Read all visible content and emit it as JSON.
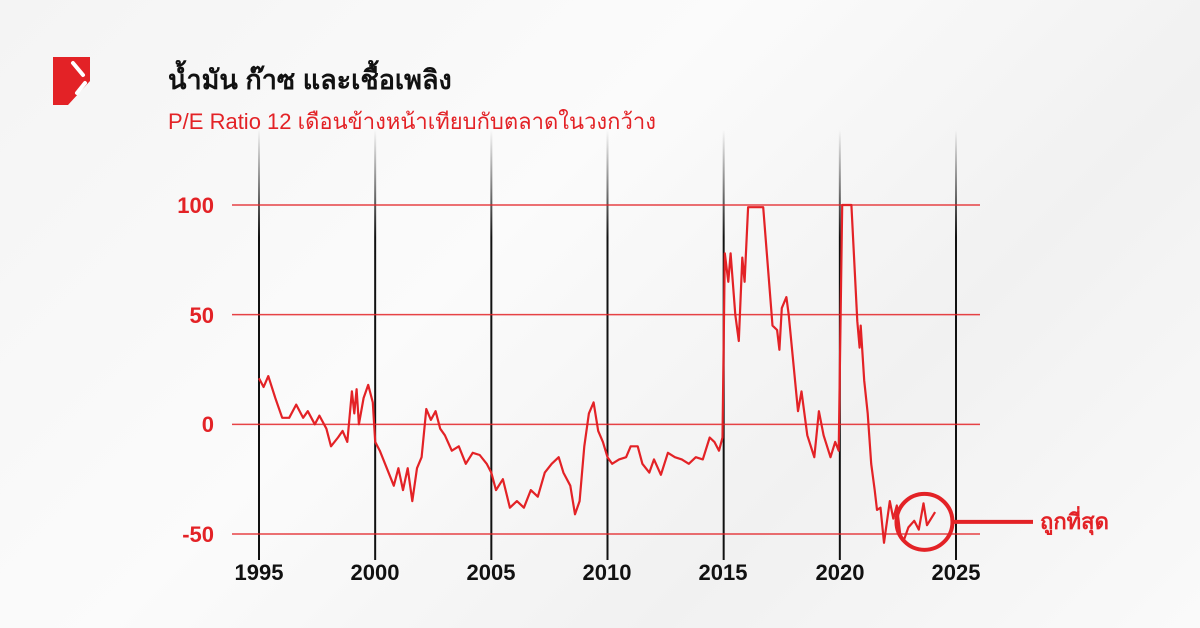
{
  "header": {
    "title": "น้ำมัน ก๊าซ และเชื้อเพลิง",
    "subtitle": "P/E Ratio 12 เดือนข้างหน้าเทียบกับตลาดในวงกว้าง"
  },
  "colors": {
    "accent": "#e32226",
    "gridline_vertical": "#111111",
    "text": "#111111"
  },
  "chart_data": {
    "type": "line",
    "title": "",
    "xlabel": "",
    "ylabel": "",
    "xlim": [
      1995,
      2025
    ],
    "ylim": [
      -50,
      100
    ],
    "x_ticks": [
      "1995",
      "2000",
      "2005",
      "2010",
      "2015",
      "2020",
      "2025"
    ],
    "y_ticks": [
      "100",
      "50",
      "0",
      "-50"
    ],
    "grid": true,
    "series": [
      {
        "points": [
          [
            1995.0,
            21
          ],
          [
            1995.2,
            17
          ],
          [
            1995.4,
            22
          ],
          [
            1995.7,
            12
          ],
          [
            1996.0,
            3
          ],
          [
            1996.3,
            3
          ],
          [
            1996.6,
            9
          ],
          [
            1996.9,
            3
          ],
          [
            1997.1,
            6
          ],
          [
            1997.4,
            0
          ],
          [
            1997.6,
            4
          ],
          [
            1997.9,
            -2
          ],
          [
            1998.1,
            -10
          ],
          [
            1998.4,
            -6
          ],
          [
            1998.6,
            -3
          ],
          [
            1998.8,
            -8
          ],
          [
            1999.0,
            15
          ],
          [
            1999.1,
            5
          ],
          [
            1999.2,
            16
          ],
          [
            1999.3,
            0
          ],
          [
            1999.5,
            12
          ],
          [
            1999.7,
            18
          ],
          [
            1999.9,
            10
          ],
          [
            2000.0,
            -8
          ],
          [
            2000.2,
            -12
          ],
          [
            2000.5,
            -20
          ],
          [
            2000.8,
            -28
          ],
          [
            2001.0,
            -20
          ],
          [
            2001.2,
            -30
          ],
          [
            2001.4,
            -20
          ],
          [
            2001.6,
            -35
          ],
          [
            2001.8,
            -20
          ],
          [
            2002.0,
            -15
          ],
          [
            2002.2,
            7
          ],
          [
            2002.4,
            2
          ],
          [
            2002.6,
            6
          ],
          [
            2002.8,
            -2
          ],
          [
            2003.0,
            -5
          ],
          [
            2003.3,
            -12
          ],
          [
            2003.6,
            -10
          ],
          [
            2003.9,
            -18
          ],
          [
            2004.2,
            -13
          ],
          [
            2004.5,
            -14
          ],
          [
            2004.8,
            -18
          ],
          [
            2005.0,
            -22
          ],
          [
            2005.2,
            -30
          ],
          [
            2005.5,
            -25
          ],
          [
            2005.8,
            -38
          ],
          [
            2006.1,
            -35
          ],
          [
            2006.4,
            -38
          ],
          [
            2006.7,
            -30
          ],
          [
            2007.0,
            -33
          ],
          [
            2007.3,
            -22
          ],
          [
            2007.6,
            -18
          ],
          [
            2007.9,
            -15
          ],
          [
            2008.1,
            -22
          ],
          [
            2008.4,
            -28
          ],
          [
            2008.6,
            -41
          ],
          [
            2008.8,
            -35
          ],
          [
            2009.0,
            -10
          ],
          [
            2009.2,
            5
          ],
          [
            2009.4,
            10
          ],
          [
            2009.6,
            -3
          ],
          [
            2009.8,
            -8
          ],
          [
            2010.0,
            -15
          ],
          [
            2010.2,
            -18
          ],
          [
            2010.5,
            -16
          ],
          [
            2010.8,
            -15
          ],
          [
            2011.0,
            -10
          ],
          [
            2011.3,
            -10
          ],
          [
            2011.5,
            -18
          ],
          [
            2011.8,
            -22
          ],
          [
            2012.0,
            -16
          ],
          [
            2012.3,
            -23
          ],
          [
            2012.6,
            -13
          ],
          [
            2012.9,
            -15
          ],
          [
            2013.2,
            -16
          ],
          [
            2013.5,
            -18
          ],
          [
            2013.8,
            -15
          ],
          [
            2014.1,
            -16
          ],
          [
            2014.4,
            -6
          ],
          [
            2014.6,
            -8
          ],
          [
            2014.8,
            -12
          ],
          [
            2014.95,
            -6
          ],
          [
            2015.05,
            78
          ],
          [
            2015.2,
            65
          ],
          [
            2015.3,
            78
          ],
          [
            2015.5,
            50
          ],
          [
            2015.65,
            38
          ],
          [
            2015.8,
            76
          ],
          [
            2015.9,
            65
          ],
          [
            2016.05,
            99
          ],
          [
            2016.7,
            99
          ],
          [
            2017.1,
            45
          ],
          [
            2017.3,
            43
          ],
          [
            2017.4,
            34
          ],
          [
            2017.5,
            53
          ],
          [
            2017.7,
            58
          ],
          [
            2017.8,
            50
          ],
          [
            2018.2,
            6
          ],
          [
            2018.35,
            15
          ],
          [
            2018.6,
            -5
          ],
          [
            2018.9,
            -15
          ],
          [
            2019.1,
            6
          ],
          [
            2019.3,
            -5
          ],
          [
            2019.6,
            -15
          ],
          [
            2019.8,
            -8
          ],
          [
            2019.95,
            -12
          ],
          [
            2020.1,
            100
          ],
          [
            2020.5,
            100
          ],
          [
            2020.75,
            47
          ],
          [
            2020.85,
            35
          ],
          [
            2020.9,
            45
          ],
          [
            2021.05,
            20
          ],
          [
            2021.2,
            5
          ],
          [
            2021.35,
            -18
          ],
          [
            2021.5,
            -30
          ],
          [
            2021.6,
            -39
          ],
          [
            2021.75,
            -38
          ],
          [
            2021.9,
            -54
          ],
          [
            2022.15,
            -35
          ],
          [
            2022.3,
            -43
          ],
          [
            2022.45,
            -37
          ],
          [
            2022.6,
            -50
          ],
          [
            2022.75,
            -53
          ],
          [
            2022.95,
            -47
          ],
          [
            2023.2,
            -44
          ],
          [
            2023.4,
            -48
          ],
          [
            2023.6,
            -36
          ],
          [
            2023.75,
            -46
          ],
          [
            2024.1,
            -40
          ]
        ]
      }
    ],
    "annotation": {
      "label": "ถูกที่สุด",
      "target": [
        2023.6,
        -44
      ]
    }
  }
}
